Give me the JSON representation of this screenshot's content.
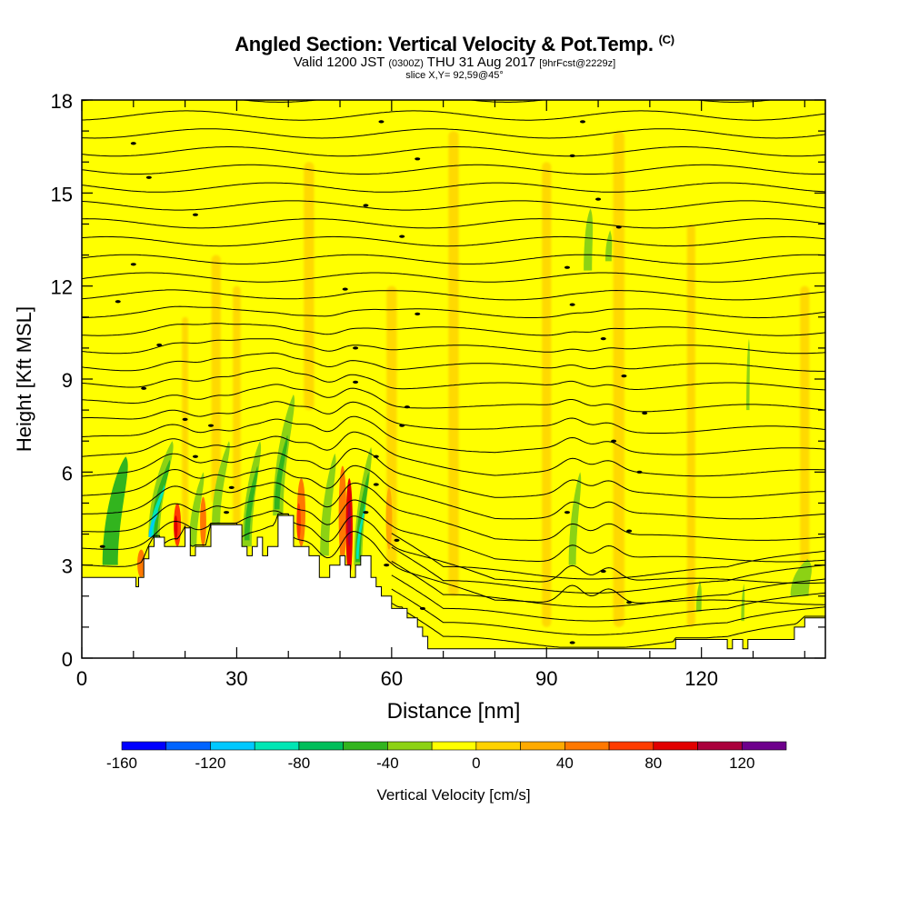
{
  "title": {
    "main": "Angled Section: Vertical Velocity & Pot.Temp.",
    "unit_tag": "(C)",
    "valid_a": "Valid 1200 JST",
    "valid_utc": "(0300Z)",
    "valid_b": "THU 31 Aug 2017",
    "forecast": "[9hrFcst@2229z]",
    "slice": "slice X,Y= 92,59@45°"
  },
  "chart_data": {
    "type": "heatmap",
    "xlabel": "Distance [nm]",
    "ylabel": "Height [Kft MSL]",
    "xlim": [
      0,
      144
    ],
    "ylim": [
      0,
      18
    ],
    "xticks": [
      0,
      30,
      60,
      90,
      120
    ],
    "yticks": [
      0,
      3,
      6,
      9,
      12,
      15,
      18
    ],
    "terrain": {
      "x": [
        0,
        5,
        10,
        10.5,
        11,
        12,
        13,
        14,
        15,
        16,
        18,
        20,
        21,
        22,
        24,
        25,
        27,
        28,
        30,
        31,
        32,
        33,
        34,
        35,
        36,
        38,
        40,
        41,
        42,
        44,
        46,
        48,
        50,
        51,
        52,
        53,
        54,
        56,
        57,
        58,
        60,
        62,
        63,
        65,
        66,
        67,
        70,
        80,
        90,
        100,
        110,
        114,
        115,
        116,
        120,
        124,
        125,
        126,
        127,
        128,
        129,
        130,
        138,
        140,
        144
      ],
      "y": [
        2.6,
        2.6,
        2.6,
        2.3,
        2.6,
        3.2,
        3.6,
        3.9,
        3.9,
        3.6,
        3.6,
        4.2,
        3.3,
        3.6,
        3.6,
        4.3,
        4.3,
        4.3,
        4.3,
        3.6,
        3.3,
        3.6,
        3.9,
        3.3,
        3.6,
        4.6,
        4.6,
        3.6,
        3.6,
        3.3,
        2.6,
        3.0,
        3.3,
        3.0,
        2.6,
        3.0,
        3.3,
        2.6,
        2.3,
        2.0,
        1.6,
        1.6,
        1.3,
        1.0,
        0.7,
        0.3,
        0.3,
        0.3,
        0.3,
        0.3,
        0.3,
        0.3,
        0.6,
        0.6,
        0.6,
        0.6,
        0.3,
        0.6,
        0.6,
        0.3,
        0.6,
        0.6,
        1.0,
        1.3,
        1.3
      ]
    },
    "colorbar": {
      "label": "Vertical Velocity [cm/s]",
      "tick_labels": [
        -160,
        -120,
        -80,
        -40,
        0,
        40,
        80,
        120
      ],
      "bins": [
        {
          "from": -160,
          "to": -140,
          "color": "#0000ff"
        },
        {
          "from": -140,
          "to": -120,
          "color": "#0064ff"
        },
        {
          "from": -120,
          "to": -100,
          "color": "#00c8ff"
        },
        {
          "from": -100,
          "to": -80,
          "color": "#00e6b4"
        },
        {
          "from": -80,
          "to": -60,
          "color": "#00be5a"
        },
        {
          "from": -60,
          "to": -40,
          "color": "#32b41e"
        },
        {
          "from": -40,
          "to": -20,
          "color": "#8cd214"
        },
        {
          "from": -20,
          "to": 0,
          "color": "#ffff00"
        },
        {
          "from": 0,
          "to": 20,
          "color": "#ffd200"
        },
        {
          "from": 20,
          "to": 40,
          "color": "#ffaa00"
        },
        {
          "from": 40,
          "to": 60,
          "color": "#ff7800"
        },
        {
          "from": 60,
          "to": 80,
          "color": "#ff3c00"
        },
        {
          "from": 80,
          "to": 100,
          "color": "#e10000"
        },
        {
          "from": 100,
          "to": 120,
          "color": "#aa003c"
        },
        {
          "from": 120,
          "to": 140,
          "color": "#6e008c"
        }
      ]
    },
    "updraft_bands": [
      {
        "x": 20,
        "y0": 4,
        "y1": 11,
        "w": 1.2
      },
      {
        "x": 26,
        "y0": 5,
        "y1": 13,
        "w": 1.8
      },
      {
        "x": 30,
        "y0": 4,
        "y1": 12,
        "w": 1.5
      },
      {
        "x": 44,
        "y0": 8,
        "y1": 16,
        "w": 2.0
      },
      {
        "x": 60,
        "y0": 3,
        "y1": 12,
        "w": 2.0
      },
      {
        "x": 72,
        "y0": 2,
        "y1": 17,
        "w": 2.0
      },
      {
        "x": 90,
        "y0": 1,
        "y1": 16,
        "w": 1.8
      },
      {
        "x": 104,
        "y0": 1,
        "y1": 17,
        "w": 2.2
      },
      {
        "x": 118,
        "y0": 1,
        "y1": 14,
        "w": 1.6
      },
      {
        "x": 140,
        "y0": 2,
        "y1": 12,
        "w": 1.8
      }
    ],
    "strong_updrafts": [
      {
        "x": 11.5,
        "y0": 2.6,
        "y1": 3.5,
        "w": 1.5,
        "color": "#ff7800"
      },
      {
        "x": 18.5,
        "y0": 3.6,
        "y1": 5.0,
        "w": 1.4,
        "color": "#ff3c00"
      },
      {
        "x": 18.2,
        "y0": 3.8,
        "y1": 4.6,
        "w": 0.7,
        "color": "#e10000"
      },
      {
        "x": 23.5,
        "y0": 3.6,
        "y1": 5.2,
        "w": 1.2,
        "color": "#ff7800"
      },
      {
        "x": 42.5,
        "y0": 3.6,
        "y1": 5.8,
        "w": 1.6,
        "color": "#ff7800"
      },
      {
        "x": 42.0,
        "y0": 3.8,
        "y1": 5.0,
        "w": 0.8,
        "color": "#ff3c00"
      },
      {
        "x": 50.5,
        "y0": 3.0,
        "y1": 6.2,
        "w": 1.5,
        "color": "#ff7800"
      },
      {
        "x": 51.8,
        "y0": 2.6,
        "y1": 5.8,
        "w": 1.3,
        "color": "#e10000"
      },
      {
        "x": 51.8,
        "y0": 3.6,
        "y1": 5.0,
        "w": 0.6,
        "color": "#aa003c"
      },
      {
        "x": 59.5,
        "y0": 3.5,
        "y1": 5.5,
        "w": 1.2,
        "color": "#ffaa00"
      }
    ],
    "downdrafts": [
      {
        "x": 5.5,
        "y0": 3.0,
        "y1": 6.5,
        "w": 3.0,
        "tilt": 3.0,
        "color": "#32b41e"
      },
      {
        "x": 14.0,
        "y0": 3.9,
        "y1": 7.0,
        "w": 2.2,
        "tilt": 3.5,
        "color": "#8cd214"
      },
      {
        "x": 14.0,
        "y0": 3.9,
        "y1": 6.4,
        "w": 1.3,
        "tilt": 3.0,
        "color": "#32b41e"
      },
      {
        "x": 13.5,
        "y0": 3.9,
        "y1": 5.6,
        "w": 0.8,
        "tilt": 2.5,
        "color": "#00e6b4"
      },
      {
        "x": 13.2,
        "y0": 3.9,
        "y1": 4.8,
        "w": 0.5,
        "tilt": 1.5,
        "color": "#00c8ff"
      },
      {
        "x": 21.5,
        "y0": 3.6,
        "y1": 6.0,
        "w": 1.5,
        "tilt": 2.0,
        "color": "#8cd214"
      },
      {
        "x": 26.0,
        "y0": 4.3,
        "y1": 7.0,
        "w": 1.6,
        "tilt": 2.5,
        "color": "#8cd214"
      },
      {
        "x": 32.0,
        "y0": 3.6,
        "y1": 7.0,
        "w": 1.8,
        "tilt": 2.5,
        "color": "#8cd214"
      },
      {
        "x": 32.0,
        "y0": 3.8,
        "y1": 6.2,
        "w": 1.0,
        "tilt": 2.0,
        "color": "#32b41e"
      },
      {
        "x": 38.0,
        "y0": 4.6,
        "y1": 8.5,
        "w": 2.0,
        "tilt": 3.0,
        "color": "#8cd214"
      },
      {
        "x": 37.8,
        "y0": 4.8,
        "y1": 7.2,
        "w": 1.0,
        "tilt": 2.0,
        "color": "#32b41e"
      },
      {
        "x": 47.0,
        "y0": 3.3,
        "y1": 6.6,
        "w": 1.7,
        "tilt": 2.0,
        "color": "#8cd214"
      },
      {
        "x": 53.5,
        "y0": 3.0,
        "y1": 6.8,
        "w": 1.6,
        "tilt": 2.5,
        "color": "#8cd214"
      },
      {
        "x": 53.5,
        "y0": 3.1,
        "y1": 6.0,
        "w": 1.0,
        "tilt": 2.0,
        "color": "#32b41e"
      },
      {
        "x": 53.4,
        "y0": 3.2,
        "y1": 5.0,
        "w": 0.5,
        "tilt": 1.5,
        "color": "#00e6b4"
      },
      {
        "x": 95.0,
        "y0": 3.0,
        "y1": 6.0,
        "w": 1.4,
        "tilt": 1.5,
        "color": "#8cd214"
      },
      {
        "x": 98.0,
        "y0": 12.5,
        "y1": 14.5,
        "w": 1.6,
        "tilt": 0.5,
        "color": "#8cd214"
      },
      {
        "x": 102.0,
        "y0": 12.8,
        "y1": 13.8,
        "w": 1.2,
        "tilt": 0.3,
        "color": "#8cd214"
      },
      {
        "x": 119.5,
        "y0": 1.5,
        "y1": 2.5,
        "w": 1.0,
        "tilt": 0.2,
        "color": "#8cd214"
      },
      {
        "x": 128.0,
        "y0": 1.2,
        "y1": 2.4,
        "w": 0.6,
        "tilt": 0.2,
        "color": "#8cd214"
      },
      {
        "x": 129.0,
        "y0": 8.0,
        "y1": 10.3,
        "w": 0.6,
        "tilt": 0.2,
        "color": "#8cd214"
      },
      {
        "x": 139.0,
        "y0": 2.0,
        "y1": 3.2,
        "w": 3.5,
        "tilt": 1.5,
        "color": "#8cd214"
      }
    ],
    "isentrope_label_positions": [
      {
        "x": 58,
        "y": 17.3
      },
      {
        "x": 97,
        "y": 17.3
      },
      {
        "x": 10,
        "y": 16.6
      },
      {
        "x": 65,
        "y": 16.1
      },
      {
        "x": 95,
        "y": 16.2
      },
      {
        "x": 13,
        "y": 15.5
      },
      {
        "x": 100,
        "y": 14.8
      },
      {
        "x": 55,
        "y": 14.6
      },
      {
        "x": 22,
        "y": 14.3
      },
      {
        "x": 104,
        "y": 13.9
      },
      {
        "x": 62,
        "y": 13.6
      },
      {
        "x": 10,
        "y": 12.7
      },
      {
        "x": 94,
        "y": 12.6
      },
      {
        "x": 51,
        "y": 11.9
      },
      {
        "x": 7,
        "y": 11.5
      },
      {
        "x": 95,
        "y": 11.4
      },
      {
        "x": 65,
        "y": 11.1
      },
      {
        "x": 15,
        "y": 10.1
      },
      {
        "x": 101,
        "y": 10.3
      },
      {
        "x": 53,
        "y": 10.0
      },
      {
        "x": 105,
        "y": 9.1
      },
      {
        "x": 12,
        "y": 8.7
      },
      {
        "x": 53,
        "y": 8.9
      },
      {
        "x": 63,
        "y": 8.1
      },
      {
        "x": 109,
        "y": 7.9
      },
      {
        "x": 20,
        "y": 7.7
      },
      {
        "x": 25,
        "y": 7.5
      },
      {
        "x": 62,
        "y": 7.5
      },
      {
        "x": 103,
        "y": 7.0
      },
      {
        "x": 22,
        "y": 6.5
      },
      {
        "x": 57,
        "y": 6.5
      },
      {
        "x": 108,
        "y": 6.0
      },
      {
        "x": 57,
        "y": 5.6
      },
      {
        "x": 29,
        "y": 5.5
      },
      {
        "x": 94,
        "y": 4.7
      },
      {
        "x": 28,
        "y": 4.7
      },
      {
        "x": 55,
        "y": 4.7
      },
      {
        "x": 106,
        "y": 4.1
      },
      {
        "x": 61,
        "y": 3.8
      },
      {
        "x": 4,
        "y": 3.6
      },
      {
        "x": 59,
        "y": 3.0
      },
      {
        "x": 101,
        "y": 2.8
      },
      {
        "x": 106,
        "y": 1.8
      },
      {
        "x": 66,
        "y": 1.6
      },
      {
        "x": 95,
        "y": 0.5
      }
    ]
  }
}
